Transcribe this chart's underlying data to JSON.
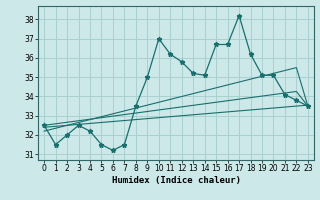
{
  "xlabel": "Humidex (Indice chaleur)",
  "bg_color": "#cce8e8",
  "grid_color": "#aad0d0",
  "line_color": "#1a6e6e",
  "xlim": [
    -0.5,
    23.5
  ],
  "ylim": [
    30.7,
    38.7
  ],
  "yticks": [
    31,
    32,
    33,
    34,
    35,
    36,
    37,
    38
  ],
  "xticks": [
    0,
    1,
    2,
    3,
    4,
    5,
    6,
    7,
    8,
    9,
    10,
    11,
    12,
    13,
    14,
    15,
    16,
    17,
    18,
    19,
    20,
    21,
    22,
    23
  ],
  "main_y": [
    32.5,
    31.5,
    32.0,
    32.5,
    32.2,
    31.5,
    31.2,
    31.5,
    33.5,
    35.0,
    37.0,
    36.2,
    35.8,
    35.2,
    35.1,
    36.7,
    36.7,
    38.2,
    36.2,
    35.1,
    35.1,
    34.1,
    33.8,
    33.5
  ],
  "trend1_y": [
    32.4,
    32.45,
    32.5,
    32.55,
    32.6,
    32.65,
    32.7,
    32.75,
    32.8,
    32.85,
    32.9,
    32.95,
    33.0,
    33.05,
    33.1,
    33.15,
    33.2,
    33.25,
    33.3,
    33.35,
    33.4,
    33.45,
    33.5,
    33.55
  ],
  "trend2_y": [
    32.2,
    32.35,
    32.5,
    32.65,
    32.8,
    32.95,
    33.1,
    33.25,
    33.4,
    33.55,
    33.7,
    33.85,
    34.0,
    34.15,
    34.3,
    34.45,
    34.6,
    34.75,
    34.9,
    35.05,
    35.2,
    35.35,
    35.5,
    33.5
  ],
  "trend3_y": [
    32.5,
    32.58,
    32.66,
    32.74,
    32.82,
    32.9,
    32.98,
    33.06,
    33.14,
    33.22,
    33.3,
    33.38,
    33.46,
    33.54,
    33.62,
    33.7,
    33.78,
    33.86,
    33.94,
    34.02,
    34.1,
    34.18,
    34.26,
    33.5
  ]
}
